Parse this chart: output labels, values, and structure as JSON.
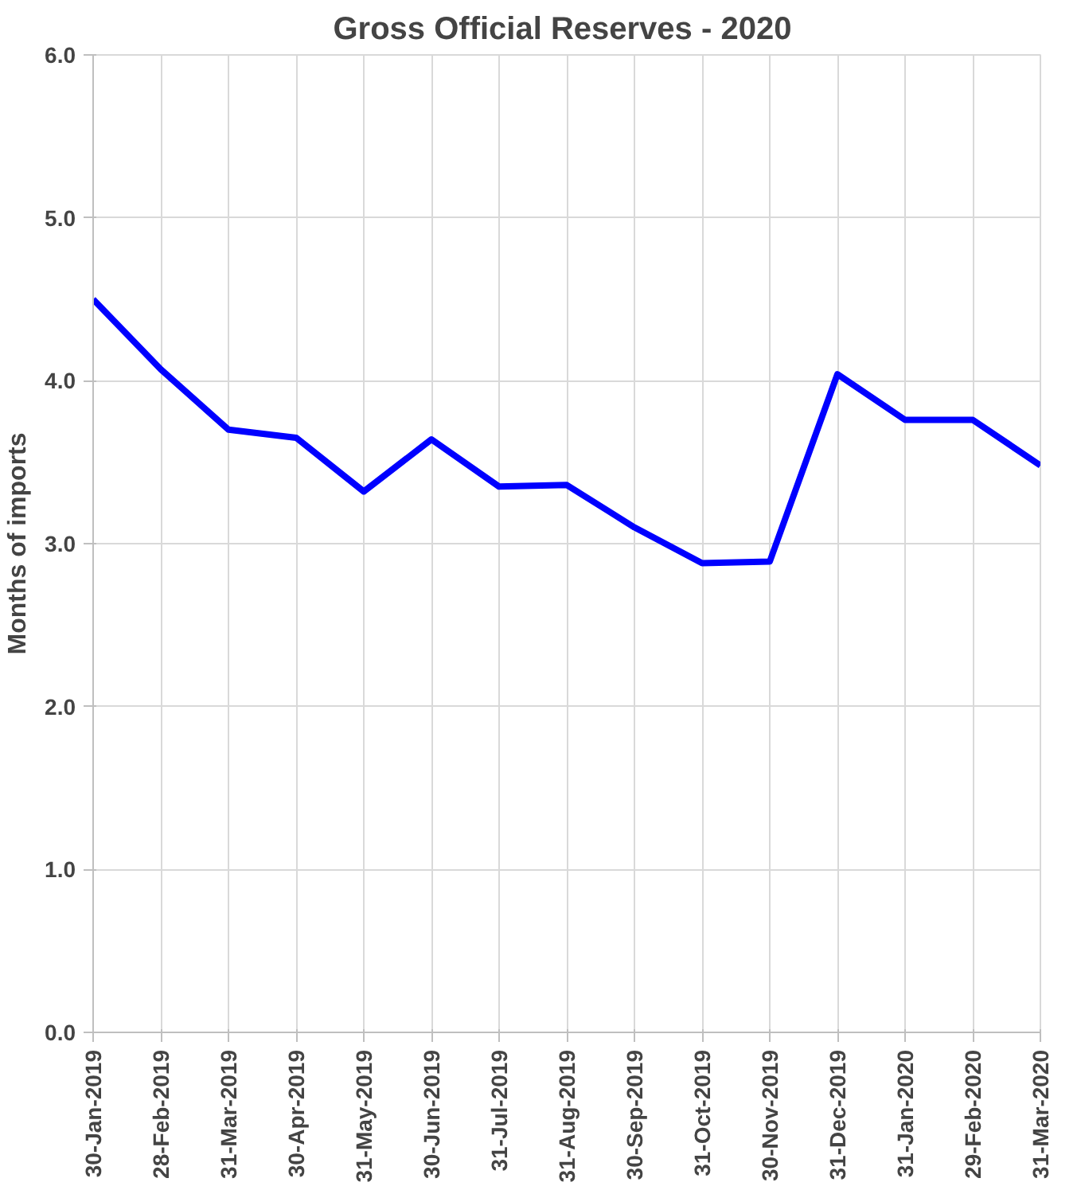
{
  "chart_data": {
    "type": "line",
    "title": "Gross Official Reserves -  2020",
    "ylabel": "Months of imports",
    "categories": [
      "30-Jan-2019",
      "28-Feb-2019",
      "31-Mar-2019",
      "30-Apr-2019",
      "31-May-2019",
      "30-Jun-2019",
      "31-Jul-2019",
      "31-Aug-2019",
      "30-Sep-2019",
      "31-Oct-2019",
      "30-Nov-2019",
      "31-Dec-2019",
      "31-Jan-2020",
      "29-Feb-2020",
      "31-Mar-2020"
    ],
    "series": [
      {
        "color": "#0000ff",
        "values": [
          4.5,
          4.07,
          3.7,
          3.65,
          3.32,
          3.64,
          3.35,
          3.36,
          3.1,
          2.88,
          2.89,
          4.04,
          3.76,
          3.76,
          3.48
        ]
      }
    ],
    "ylim": [
      0,
      6
    ],
    "yticks": [
      {
        "value": 0,
        "label": "0.0"
      },
      {
        "value": 1,
        "label": "1.0"
      },
      {
        "value": 2,
        "label": "2.0"
      },
      {
        "value": 3,
        "label": "3.0"
      },
      {
        "value": 4,
        "label": "4.0"
      },
      {
        "value": 5,
        "label": "5.0"
      },
      {
        "value": 6,
        "label": "6.0"
      }
    ],
    "grid": true
  }
}
